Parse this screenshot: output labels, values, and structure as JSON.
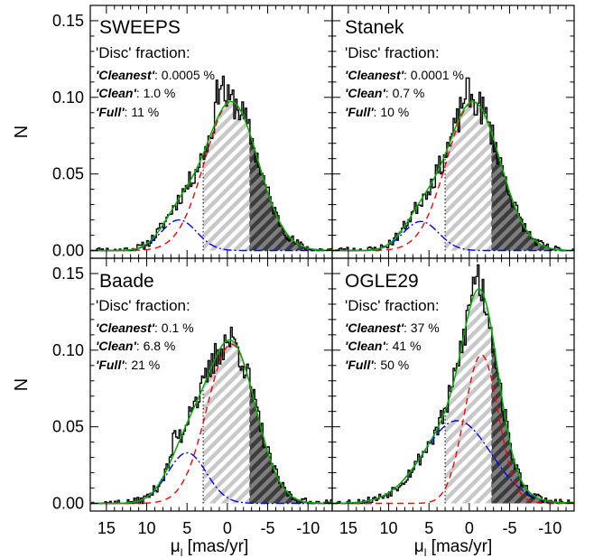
{
  "figure": {
    "ylabel": "N",
    "xlabel_symbol": "μ",
    "xlabel_sub": "l",
    "xlabel_unit": " [mas/yr]"
  },
  "chart_data": [
    {
      "type": "line",
      "title": "SWEEPS",
      "annotation": {
        "heading": "'Disc' fraction:",
        "rows": [
          {
            "label": "'Cleanest'",
            "value": ": 0.0005 %"
          },
          {
            "label": "'Clean'",
            "value": ": 1.0 %"
          },
          {
            "label": "'Full'",
            "value": ": 11 %"
          }
        ]
      },
      "x_axis": {
        "direction": "reversed",
        "xlim": [
          17,
          -13
        ],
        "ticks": [
          15,
          10,
          5,
          0,
          -5,
          -10
        ],
        "tick_labels": [
          "15",
          "10",
          "5",
          "0",
          "-5",
          "-10"
        ]
      },
      "y_axis": {
        "ylim": [
          -0.005,
          0.16
        ],
        "ticks": [
          0.0,
          0.05,
          0.1,
          0.15
        ],
        "tick_labels": [
          "0.00",
          "0.05",
          "0.10",
          "0.15"
        ]
      },
      "regions": [
        {
          "style": "light-hatch",
          "x_from": 3.0,
          "x_to": -2.8,
          "boundary_line": "dotted at 3.0"
        },
        {
          "style": "dark-hatch",
          "x_from": -2.8,
          "x_to": -13,
          "boundary_line": "dashed at -2.8"
        }
      ],
      "components": [
        {
          "name": "disc",
          "color": "#0000ff",
          "linestyle": "dash-dot",
          "amp": 0.02,
          "mu": 6.0,
          "sigma": 2.2
        },
        {
          "name": "bulge",
          "color": "#ff0000",
          "linestyle": "dashed",
          "amp": 0.097,
          "mu": -0.5,
          "sigma": 3.3
        }
      ],
      "total_fit": {
        "color": "#00b000",
        "linestyle": "solid"
      },
      "histogram": {
        "color": "#000000",
        "x_from": 16.9,
        "x_to": -12.9,
        "step": 0.2,
        "seed": 11,
        "bumps": [
          {
            "x": 0.8,
            "h": 0.018
          },
          {
            "x": 1.3,
            "h": 0.008
          }
        ]
      }
    },
    {
      "type": "line",
      "title": "Stanek",
      "annotation": {
        "heading": "'Disc' fraction:",
        "rows": [
          {
            "label": "'Cleanest'",
            "value": ": 0.0001 %"
          },
          {
            "label": "'Clean'",
            "value": ": 0.7 %"
          },
          {
            "label": "'Full'",
            "value": ": 10 %"
          }
        ]
      },
      "x_axis": {
        "direction": "reversed",
        "xlim": [
          17,
          -13
        ],
        "ticks": [
          15,
          10,
          5,
          0,
          -5,
          -10
        ],
        "tick_labels": [
          "15",
          "10",
          "5",
          "0",
          "-5",
          "-10"
        ]
      },
      "y_axis": {
        "ylim": [
          -0.005,
          0.16
        ],
        "ticks": [
          0.0,
          0.05,
          0.1,
          0.15
        ],
        "tick_labels": [
          "0.00",
          "0.05",
          "0.10",
          "0.15"
        ]
      },
      "regions": [
        {
          "style": "light-hatch",
          "x_from": 3.0,
          "x_to": -2.8,
          "boundary_line": "dotted at 3.0"
        },
        {
          "style": "dark-hatch",
          "x_from": -2.8,
          "x_to": -13,
          "boundary_line": "dashed at -2.8"
        }
      ],
      "components": [
        {
          "name": "disc",
          "color": "#0000ff",
          "linestyle": "dash-dot",
          "amp": 0.019,
          "mu": 6.0,
          "sigma": 2.2
        },
        {
          "name": "bulge",
          "color": "#ff0000",
          "linestyle": "dashed",
          "amp": 0.097,
          "mu": -0.5,
          "sigma": 3.3
        }
      ],
      "total_fit": {
        "color": "#00b000",
        "linestyle": "solid"
      },
      "histogram": {
        "color": "#000000",
        "x_from": 16.9,
        "x_to": -12.9,
        "step": 0.2,
        "seed": 23,
        "bumps": [
          {
            "x": 0.5,
            "h": 0.01
          }
        ]
      }
    },
    {
      "type": "line",
      "title": "Baade",
      "annotation": {
        "heading": "'Disc' fraction:",
        "rows": [
          {
            "label": "'Cleanest'",
            "value": ": 0.1 %"
          },
          {
            "label": "'Clean'",
            "value": ": 6.8 %"
          },
          {
            "label": "'Full'",
            "value": ": 21 %"
          }
        ]
      },
      "x_axis": {
        "direction": "reversed",
        "xlim": [
          17,
          -13
        ],
        "ticks": [
          15,
          10,
          5,
          0,
          -5,
          -10
        ],
        "tick_labels": [
          "15",
          "10",
          "5",
          "0",
          "-5",
          "-10"
        ]
      },
      "y_axis": {
        "ylim": [
          -0.005,
          0.16
        ],
        "ticks": [
          0.0,
          0.05,
          0.1,
          0.15
        ],
        "tick_labels": [
          "0.00",
          "0.05",
          "0.10",
          "0.15"
        ]
      },
      "regions": [
        {
          "style": "light-hatch",
          "x_from": 3.0,
          "x_to": -2.8,
          "boundary_line": "dotted at 3.0"
        },
        {
          "style": "dark-hatch",
          "x_from": -2.8,
          "x_to": -13,
          "boundary_line": "dashed at -2.8"
        }
      ],
      "components": [
        {
          "name": "disc",
          "color": "#0000ff",
          "linestyle": "dash-dot",
          "amp": 0.033,
          "mu": 5.0,
          "sigma": 2.4
        },
        {
          "name": "bulge",
          "color": "#ff0000",
          "linestyle": "dashed",
          "amp": 0.104,
          "mu": -0.5,
          "sigma": 3.0
        }
      ],
      "total_fit": {
        "color": "#00b000",
        "linestyle": "solid"
      },
      "histogram": {
        "color": "#000000",
        "x_from": 16.9,
        "x_to": -12.9,
        "step": 0.2,
        "seed": 37,
        "bumps": [
          {
            "x": 6.5,
            "h": 0.01
          },
          {
            "x": 4.5,
            "h": 0.008
          }
        ]
      }
    },
    {
      "type": "line",
      "title": "OGLE29",
      "annotation": {
        "heading": "'Disc' fraction:",
        "rows": [
          {
            "label": "'Cleanest'",
            "value": ": 37 %"
          },
          {
            "label": "'Clean'",
            "value": ": 41 %"
          },
          {
            "label": "'Full'",
            "value": ": 50 %"
          }
        ]
      },
      "x_axis": {
        "direction": "reversed",
        "xlim": [
          17,
          -13
        ],
        "ticks": [
          15,
          10,
          5,
          0,
          -5,
          -10
        ],
        "tick_labels": [
          "15",
          "10",
          "5",
          "0",
          "-5",
          "-10"
        ]
      },
      "y_axis": {
        "ylim": [
          -0.005,
          0.16
        ],
        "ticks": [
          0.0,
          0.05,
          0.1,
          0.15
        ],
        "tick_labels": [
          "0.00",
          "0.05",
          "0.10",
          "0.15"
        ]
      },
      "regions": [
        {
          "style": "light-hatch",
          "x_from": 3.0,
          "x_to": -2.8,
          "boundary_line": "dotted at 3.0"
        },
        {
          "style": "dark-hatch",
          "x_from": -2.8,
          "x_to": -13,
          "boundary_line": "dashed at -2.8"
        }
      ],
      "components": [
        {
          "name": "disc",
          "color": "#0000ff",
          "linestyle": "dash-dot",
          "amp": 0.054,
          "mu": 1.5,
          "sigma": 4.2
        },
        {
          "name": "bulge",
          "color": "#ff0000",
          "linestyle": "dashed",
          "amp": 0.097,
          "mu": -1.5,
          "sigma": 2.1
        }
      ],
      "total_fit": {
        "color": "#00b000",
        "linestyle": "solid"
      },
      "histogram": {
        "color": "#000000",
        "x_from": 16.9,
        "x_to": -12.9,
        "step": 0.2,
        "seed": 53,
        "bumps": [
          {
            "x": -0.8,
            "h": 0.012
          }
        ]
      }
    }
  ]
}
